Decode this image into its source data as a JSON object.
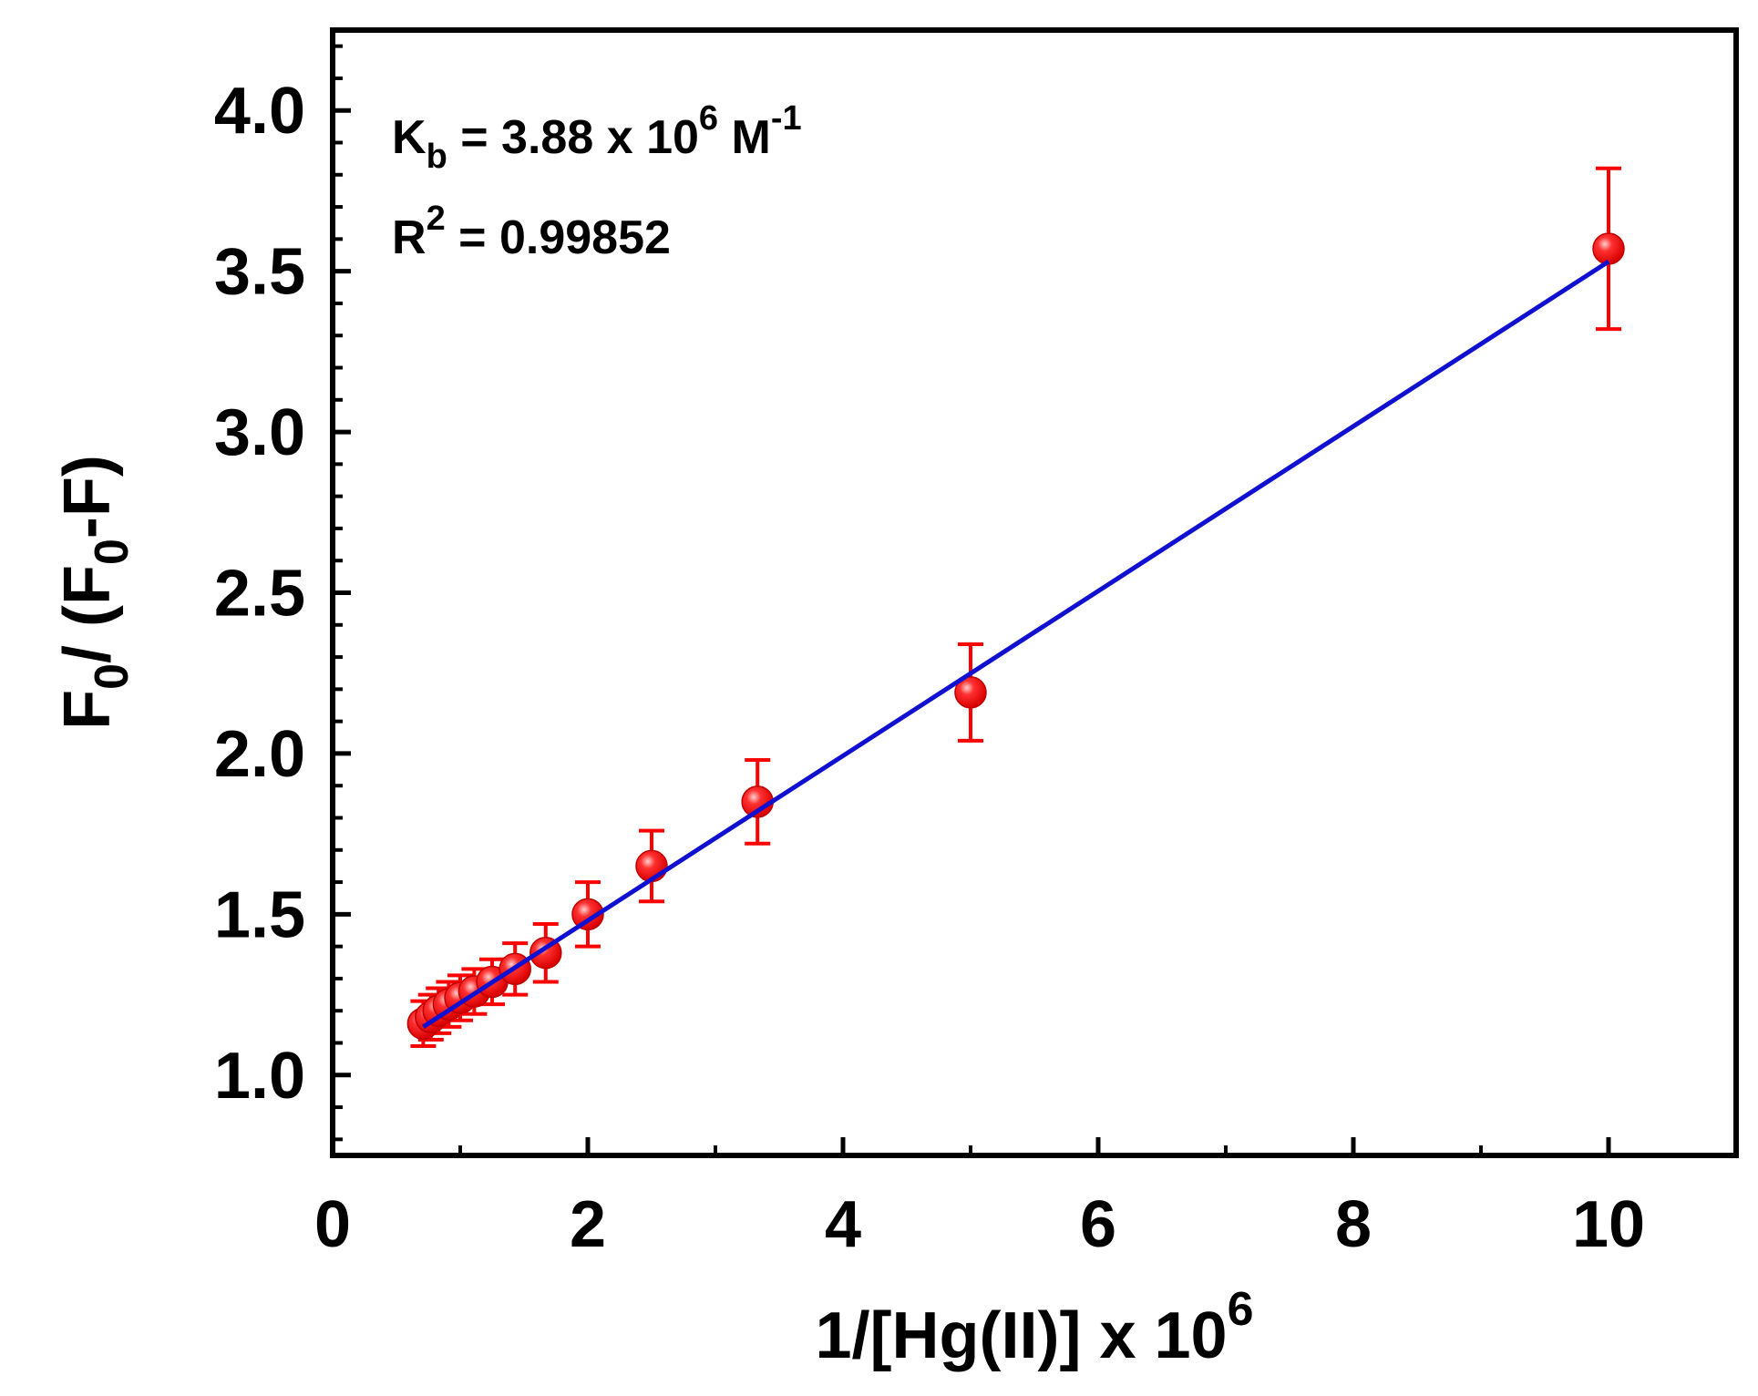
{
  "chart_data": {
    "type": "scatter",
    "x_label_base": "1/[Hg(II)] x 10",
    "x_label_exp": "6",
    "y_label_parts": {
      "f": "F",
      "sub0": "0",
      "mid": "/ (F",
      "sub1": "0",
      "end": "-F)"
    },
    "xlim": [
      0,
      11
    ],
    "ylim": [
      0.75,
      4.25
    ],
    "x_ticks": [
      "0",
      "2",
      "4",
      "6",
      "8",
      "10"
    ],
    "x_tick_values": [
      0,
      2,
      4,
      6,
      8,
      10
    ],
    "y_ticks": [
      "1.0",
      "1.5",
      "2.0",
      "2.5",
      "3.0",
      "3.5",
      "4.0"
    ],
    "y_tick_values": [
      1.0,
      1.5,
      2.0,
      2.5,
      3.0,
      3.5,
      4.0
    ],
    "grid": false,
    "legend": "none",
    "annotations": {
      "kb": {
        "k": "K",
        "sub": "b",
        "mid": " = 3.88 x 10",
        "exp": "6",
        "unit": " M",
        "unit_exp": "-1"
      },
      "r2": {
        "r": "R",
        "exp": "2",
        "value": " = 0.99852"
      }
    },
    "points": [
      {
        "x": 0.71,
        "y": 1.16,
        "err": 0.07
      },
      {
        "x": 0.77,
        "y": 1.18,
        "err": 0.07
      },
      {
        "x": 0.83,
        "y": 1.2,
        "err": 0.07
      },
      {
        "x": 0.91,
        "y": 1.22,
        "err": 0.07
      },
      {
        "x": 1.0,
        "y": 1.24,
        "err": 0.07
      },
      {
        "x": 1.11,
        "y": 1.26,
        "err": 0.07
      },
      {
        "x": 1.25,
        "y": 1.29,
        "err": 0.07
      },
      {
        "x": 1.43,
        "y": 1.33,
        "err": 0.08
      },
      {
        "x": 1.67,
        "y": 1.38,
        "err": 0.09
      },
      {
        "x": 2.0,
        "y": 1.5,
        "err": 0.1
      },
      {
        "x": 2.5,
        "y": 1.65,
        "err": 0.11
      },
      {
        "x": 3.33,
        "y": 1.85,
        "err": 0.13
      },
      {
        "x": 5.0,
        "y": 2.19,
        "err": 0.15
      },
      {
        "x": 10.0,
        "y": 3.57,
        "err": 0.25
      }
    ],
    "fit_line": {
      "x": [
        0.71,
        10.0
      ],
      "y": [
        1.15,
        3.53
      ]
    },
    "colors": {
      "points": "#ff0000",
      "fit": "#1010d0",
      "axes": "#000000"
    }
  }
}
